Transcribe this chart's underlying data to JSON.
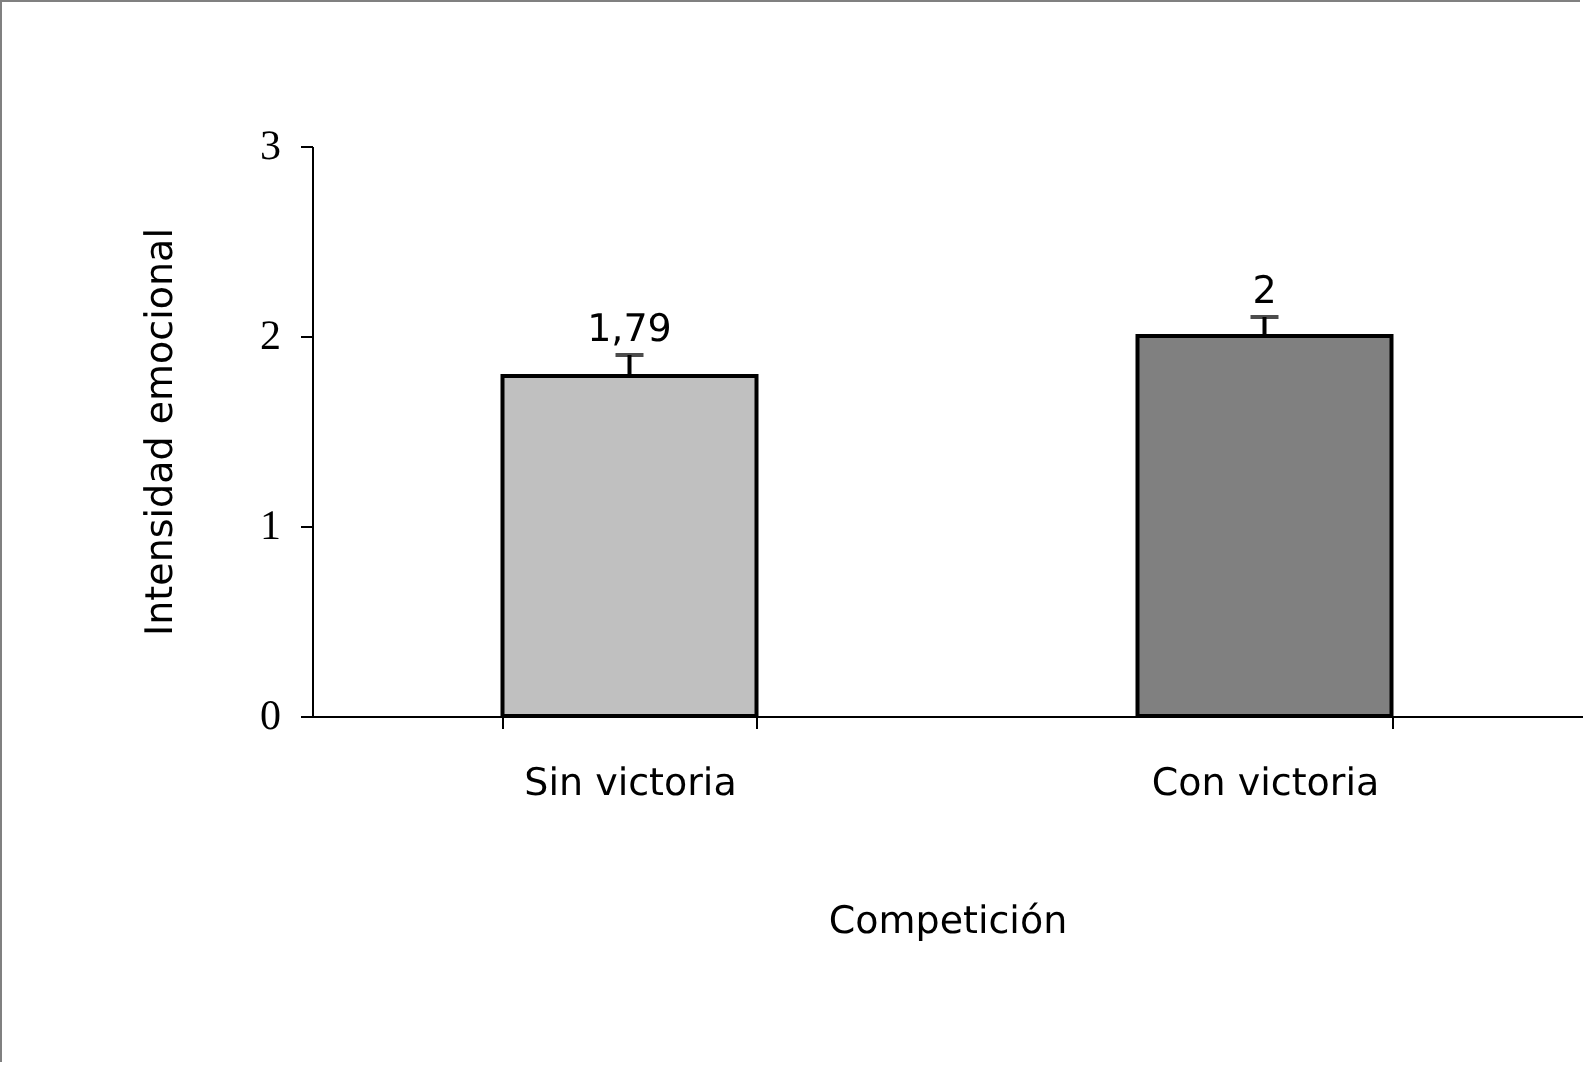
{
  "chart_data": {
    "type": "bar",
    "xlabel": "Competición",
    "ylabel": "Intensidad emocional",
    "categories": [
      "Sin victoria",
      "Con victoria"
    ],
    "values": [
      1.79,
      2
    ],
    "colors": [
      "#c0c0c0",
      "#808080"
    ],
    "errors": [
      [
        1.79,
        1.9
      ],
      [
        2,
        2.1
      ]
    ],
    "value_labels": [
      "1,79",
      "2"
    ],
    "ylim": [
      0,
      3
    ],
    "yticks": [
      0,
      1,
      2,
      3
    ]
  }
}
